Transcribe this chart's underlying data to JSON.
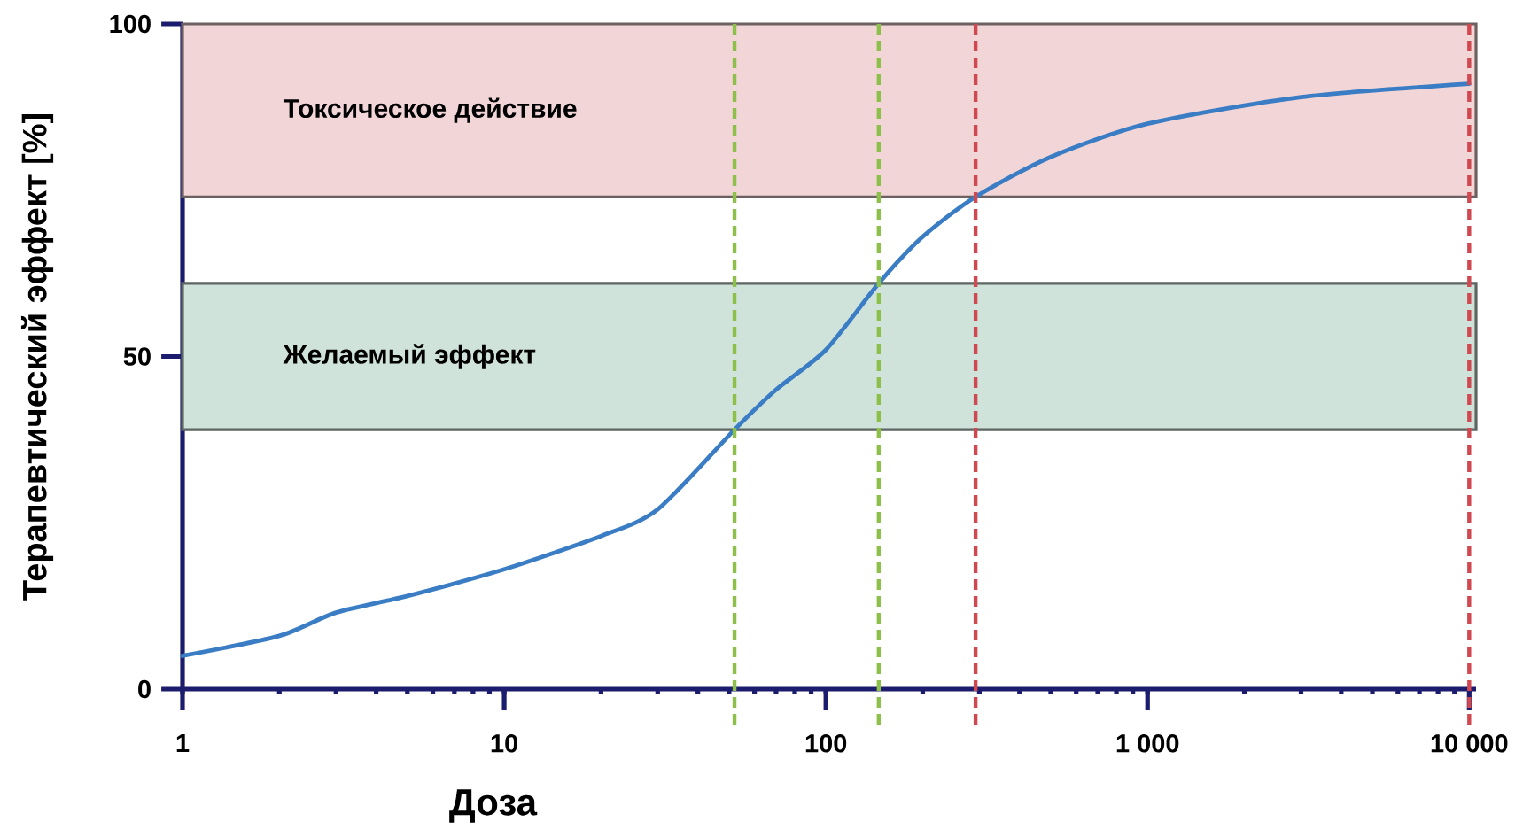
{
  "chart_data": {
    "type": "line",
    "xlabel": "Доза",
    "ylabel": "Терапевтический эффект [%]",
    "log": "x",
    "xlim": [
      1,
      10500
    ],
    "ylim": [
      0,
      100
    ],
    "xticks": [
      1,
      10,
      100,
      {
        "value": 1000,
        "label": "1 000"
      },
      {
        "value": 10000,
        "label": "10 000"
      }
    ],
    "yticks": [
      0,
      50,
      100
    ],
    "marker": "none",
    "series": [
      {
        "color": "#3a7dc4",
        "x": [
          1,
          2,
          3,
          5,
          10,
          20,
          30,
          52,
          70,
          100,
          146,
          200,
          292,
          500,
          1000,
          3000,
          10000
        ],
        "values": [
          5,
          8,
          11.5,
          14,
          18,
          23,
          27,
          39,
          45,
          51,
          61,
          68,
          74,
          80,
          85,
          89,
          91
        ]
      }
    ],
    "bands": [
      {
        "axis": "y",
        "from": 74,
        "to": 100,
        "label": "Токсическое действие",
        "color": "#f2d5d7"
      },
      {
        "axis": "y",
        "from": 39,
        "to": 61,
        "label": "Желаемый эффект",
        "color": "#cfe3db"
      }
    ],
    "ref_lines": [
      {
        "axis": "x",
        "value": 52,
        "color": "#8dc04a",
        "line_style": "dashed"
      },
      {
        "axis": "x",
        "value": 146,
        "color": "#8dc04a",
        "line_style": "dashed"
      },
      {
        "axis": "x",
        "value": 292,
        "color": "#d04850",
        "line_style": "dashed"
      },
      {
        "axis": "x",
        "value": 10000,
        "color": "#d04850",
        "line_style": "dashed"
      }
    ]
  }
}
